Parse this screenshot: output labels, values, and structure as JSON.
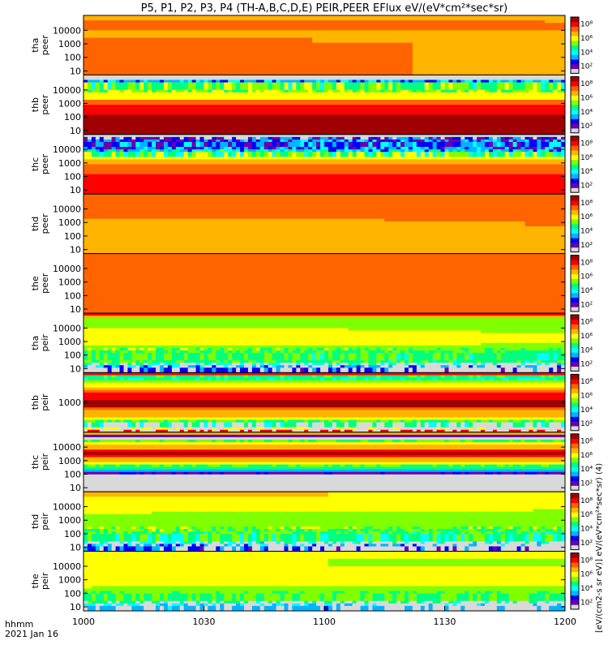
{
  "chart_data": {
    "type": "heatmap",
    "title": "P5, P1, P2, P3, P4 (TH-A,B,C,D,E) PEIR,PEER EFlux eV/(eV*cm²*sec*sr)",
    "xlabel": "hhmm",
    "date_label": "2021 Jan 16",
    "x_ticks": [
      "1000",
      "1030",
      "1100",
      "1130",
      "1200"
    ],
    "x_range_minutes": [
      0,
      120
    ],
    "colorbar": {
      "label": "[eV/(cm2-s sr eV)] eV/(eV*cm²*sec*sr) (4)",
      "tick_labels": [
        "10²",
        "10⁴",
        "10⁶",
        "10⁸"
      ],
      "colormap": [
        "#d9d9d9",
        "#6b00b0",
        "#0000ff",
        "#00b4ff",
        "#00ffff",
        "#00ff80",
        "#80ff00",
        "#ffff00",
        "#ffb400",
        "#ff6400",
        "#ff0000",
        "#a00000"
      ]
    },
    "panels": [
      {
        "name": "tha peer",
        "probe": "tha",
        "species": "peer",
        "y_ticks": [
          "10",
          "100",
          "1000",
          "10000"
        ],
        "bands": [
          {
            "from": 0,
            "to": 0.6,
            "level": 8.6
          },
          {
            "from": 0.6,
            "to": 0.78,
            "level": 8.4
          },
          {
            "from": 0.78,
            "to": 0.9,
            "level": 9.3
          },
          {
            "from": 0.9,
            "to": 1,
            "level": 7.6
          }
        ],
        "trend": -0.3,
        "speckle": 0
      },
      {
        "name": "thb peer",
        "probe": "thb",
        "species": "peer",
        "y_ticks": [
          "10",
          "100",
          "1000",
          "10000"
        ],
        "bands": [
          {
            "from": 0,
            "to": 0.32,
            "level": 11
          },
          {
            "from": 0.32,
            "to": 0.5,
            "level": 10
          },
          {
            "from": 0.5,
            "to": 0.6,
            "level": 8.5
          },
          {
            "from": 0.6,
            "to": 0.72,
            "level": 6.5
          },
          {
            "from": 0.72,
            "to": 0.9,
            "level": 5.6
          },
          {
            "from": 0.9,
            "to": 1,
            "level": 0
          }
        ],
        "trend": 0,
        "speckle": 0.4
      },
      {
        "name": "thc peer",
        "probe": "thc",
        "species": "peer",
        "y_ticks": [
          "10",
          "100",
          "1000",
          "10000"
        ],
        "bands": [
          {
            "from": 0,
            "to": 0.3,
            "level": 10.5
          },
          {
            "from": 0.3,
            "to": 0.5,
            "level": 9.2
          },
          {
            "from": 0.5,
            "to": 0.62,
            "level": 7.8
          },
          {
            "from": 0.62,
            "to": 0.72,
            "level": 5.6
          },
          {
            "from": 0.72,
            "to": 0.95,
            "level": 2.4
          },
          {
            "from": 0.95,
            "to": 1,
            "level": 0
          }
        ],
        "trend": 0,
        "speckle": 0.6
      },
      {
        "name": "thd peer",
        "probe": "thd",
        "species": "peer",
        "y_ticks": [
          "10",
          "100",
          "1000",
          "10000"
        ],
        "bands": [
          {
            "from": 0,
            "to": 0.55,
            "level": 8.3
          },
          {
            "from": 0.55,
            "to": 0.85,
            "level": 8.6
          },
          {
            "from": 0.85,
            "to": 1,
            "level": 8.8
          }
        ],
        "trend": 0.2,
        "speckle": 0
      },
      {
        "name": "the peer",
        "probe": "the",
        "species": "peer",
        "y_ticks": [
          "10",
          "100",
          "1000",
          "10000"
        ],
        "bands": [
          {
            "from": 0,
            "to": 0.3,
            "level": 9.0
          },
          {
            "from": 0.3,
            "to": 0.7,
            "level": 8.9
          },
          {
            "from": 0.7,
            "to": 1,
            "level": 9.1
          }
        ],
        "trend": 0,
        "speckle": 0
      },
      {
        "name": "tha peir",
        "probe": "tha",
        "species": "peir",
        "y_ticks": [
          "10",
          "100",
          "1000",
          "10000"
        ],
        "bands": [
          {
            "from": 0,
            "to": 0.12,
            "level": 2.2
          },
          {
            "from": 0.12,
            "to": 0.4,
            "level": 5.2
          },
          {
            "from": 0.4,
            "to": 0.75,
            "level": 6.7
          },
          {
            "from": 0.75,
            "to": 0.95,
            "level": 6.2
          },
          {
            "from": 0.95,
            "to": 1,
            "level": 10
          }
        ],
        "trend": -0.4,
        "speckle": 0.25
      },
      {
        "name": "thb peir",
        "probe": "thb",
        "species": "peir",
        "y_ticks": [
          "1000"
        ],
        "bands": [
          {
            "from": 0,
            "to": 0.06,
            "level": 10
          },
          {
            "from": 0.06,
            "to": 0.2,
            "level": 4.6
          },
          {
            "from": 0.2,
            "to": 0.4,
            "level": 7.5
          },
          {
            "from": 0.4,
            "to": 0.58,
            "level": 10.8
          },
          {
            "from": 0.58,
            "to": 0.72,
            "level": 9.5
          },
          {
            "from": 0.72,
            "to": 0.88,
            "level": 6.5
          },
          {
            "from": 0.88,
            "to": 0.95,
            "level": 4.5
          },
          {
            "from": 0.95,
            "to": 1,
            "level": 10
          }
        ],
        "trend": 0,
        "speckle": 0.15
      },
      {
        "name": "thc peir",
        "probe": "thc",
        "species": "peir",
        "y_ticks": [
          "10",
          "100",
          "1000",
          "10000"
        ],
        "bands": [
          {
            "from": 0,
            "to": 0.35,
            "level": 0
          },
          {
            "from": 0.35,
            "to": 0.45,
            "level": 4.8
          },
          {
            "from": 0.45,
            "to": 0.58,
            "level": 7.5
          },
          {
            "from": 0.58,
            "to": 0.7,
            "level": 10.5
          },
          {
            "from": 0.7,
            "to": 0.82,
            "level": 8
          },
          {
            "from": 0.82,
            "to": 0.88,
            "level": 5.5
          },
          {
            "from": 0.88,
            "to": 0.95,
            "level": 0
          },
          {
            "from": 0.95,
            "to": 1,
            "level": 7.5
          }
        ],
        "trend": 0,
        "speckle": 0.1
      },
      {
        "name": "thd peir",
        "probe": "thd",
        "species": "peir",
        "y_ticks": [
          "10",
          "100",
          "1000",
          "10000"
        ],
        "bands": [
          {
            "from": 0,
            "to": 0.12,
            "level": 2.2
          },
          {
            "from": 0.12,
            "to": 0.35,
            "level": 5.0
          },
          {
            "from": 0.35,
            "to": 0.7,
            "level": 6.2
          },
          {
            "from": 0.7,
            "to": 0.9,
            "level": 7.2
          },
          {
            "from": 0.9,
            "to": 1,
            "level": 7.5
          }
        ],
        "trend": -0.3,
        "speckle": 0.3
      },
      {
        "name": "the peir",
        "probe": "the",
        "species": "peir",
        "y_ticks": [
          "10",
          "100",
          "1000",
          "10000"
        ],
        "bands": [
          {
            "from": 0,
            "to": 0.12,
            "level": 3.0
          },
          {
            "from": 0.12,
            "to": 0.35,
            "level": 5.6
          },
          {
            "from": 0.35,
            "to": 0.75,
            "level": 6.7
          },
          {
            "from": 0.75,
            "to": 0.9,
            "level": 6.5
          },
          {
            "from": 0.9,
            "to": 1,
            "level": 7.3
          }
        ],
        "trend": -0.2,
        "speckle": 0.2
      }
    ]
  }
}
